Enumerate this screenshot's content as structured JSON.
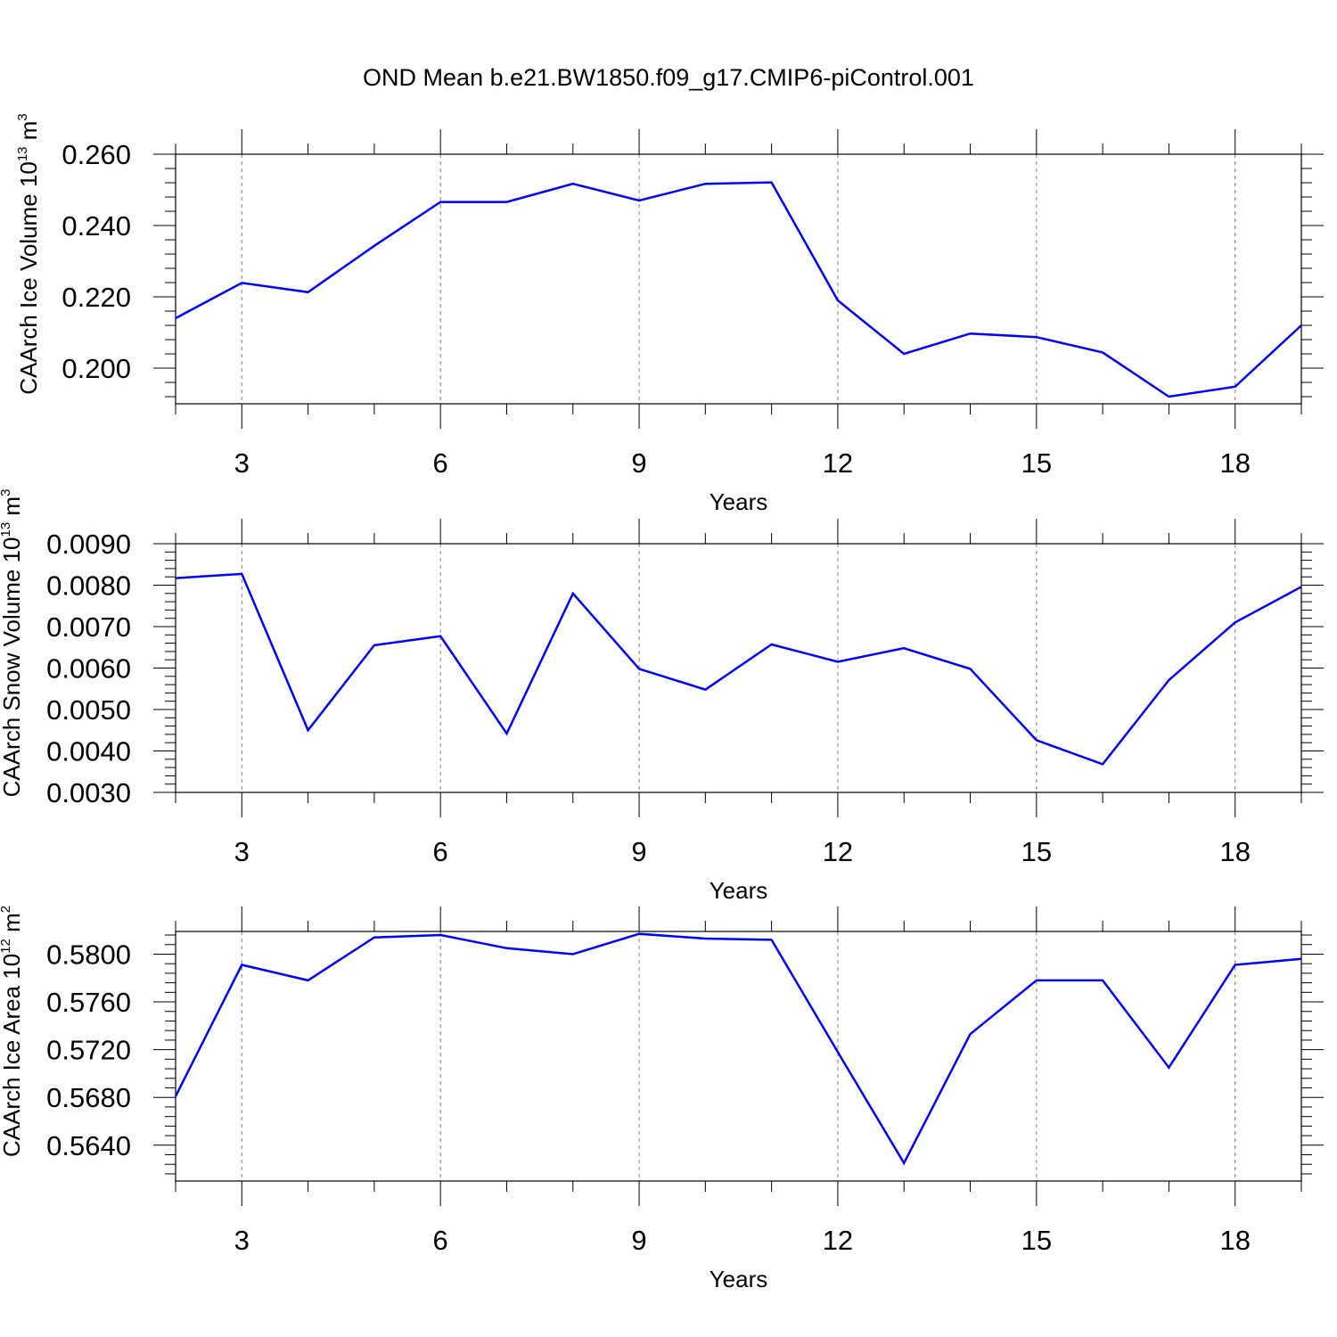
{
  "title": "OND Mean b.e21.BW1850.f09_g17.CMIP6-piControl.001",
  "colors": {
    "line": "#0000ff",
    "axis": "#000000",
    "grid": "#808080"
  },
  "chart_data": [
    {
      "type": "line",
      "xlabel": "Years",
      "ylabel": {
        "text": "CAArch Ice Volume 10",
        "exp": "13",
        "unit": " m",
        "unit_exp": "3"
      },
      "x": [
        2,
        3,
        4,
        5,
        6,
        7,
        8,
        9,
        10,
        11,
        12,
        13,
        14,
        15,
        16,
        17,
        18,
        19
      ],
      "series": [
        {
          "values": [
            0.214,
            0.2239,
            0.2213,
            0.2343,
            0.2466,
            0.2466,
            0.2517,
            0.247,
            0.2517,
            0.2521,
            0.219,
            0.204,
            0.2097,
            0.2087,
            0.2044,
            0.192,
            0.1948,
            0.212
          ]
        }
      ],
      "xlim": [
        2,
        19
      ],
      "ylim": [
        0.19,
        0.26
      ],
      "x_ticks": [
        3,
        6,
        9,
        12,
        15,
        18
      ],
      "x_tick_labels": [
        "3",
        "6",
        "9",
        "12",
        "15",
        "18"
      ],
      "y_ticks": [
        0.2,
        0.22,
        0.24,
        0.26
      ],
      "y_tick_labels": [
        "0.200",
        "0.220",
        "0.240",
        "0.260"
      ],
      "y_minor_step": 0.004,
      "grid": "vertical dashed at major x ticks"
    },
    {
      "type": "line",
      "xlabel": "Years",
      "ylabel": {
        "text": "CAArch Snow Volume 10",
        "exp": "13",
        "unit": " m",
        "unit_exp": "3"
      },
      "x": [
        2,
        3,
        4,
        5,
        6,
        7,
        8,
        9,
        10,
        11,
        12,
        13,
        14,
        15,
        16,
        17,
        18,
        19
      ],
      "series": [
        {
          "values": [
            0.00817,
            0.00827,
            0.0045,
            0.00655,
            0.00677,
            0.00442,
            0.0078,
            0.00598,
            0.00548,
            0.00657,
            0.00615,
            0.00648,
            0.00598,
            0.00426,
            0.00368,
            0.00571,
            0.0071,
            0.00796
          ]
        }
      ],
      "xlim": [
        2,
        19
      ],
      "ylim": [
        0.003,
        0.009
      ],
      "x_ticks": [
        3,
        6,
        9,
        12,
        15,
        18
      ],
      "x_tick_labels": [
        "3",
        "6",
        "9",
        "12",
        "15",
        "18"
      ],
      "y_ticks": [
        0.003,
        0.004,
        0.005,
        0.006,
        0.007,
        0.008,
        0.009
      ],
      "y_tick_labels": [
        "0.0030",
        "0.0040",
        "0.0050",
        "0.0060",
        "0.0070",
        "0.0080",
        "0.0090"
      ],
      "y_minor_step": 0.0002,
      "grid": "vertical dashed at major x ticks"
    },
    {
      "type": "line",
      "xlabel": "Years",
      "ylabel": {
        "text": "CAArch Ice Area 10",
        "exp": "12",
        "unit": " m",
        "unit_exp": "2"
      },
      "x": [
        2,
        3,
        4,
        5,
        6,
        7,
        8,
        9,
        10,
        11,
        12,
        13,
        14,
        15,
        16,
        17,
        18,
        19
      ],
      "series": [
        {
          "values": [
            0.5681,
            0.5791,
            0.5778,
            0.5814,
            0.5816,
            0.5805,
            0.58,
            0.5817,
            0.5813,
            0.5812,
            0.5718,
            0.5625,
            0.5733,
            0.5778,
            0.5778,
            0.5705,
            0.5791,
            0.5796
          ]
        }
      ],
      "xlim": [
        2,
        19
      ],
      "ylim": [
        0.561,
        0.5819
      ],
      "x_ticks": [
        3,
        6,
        9,
        12,
        15,
        18
      ],
      "x_tick_labels": [
        "3",
        "6",
        "9",
        "12",
        "15",
        "18"
      ],
      "y_ticks": [
        0.564,
        0.568,
        0.572,
        0.576,
        0.58
      ],
      "y_tick_labels": [
        "0.5640",
        "0.5680",
        "0.5720",
        "0.5760",
        "0.5800"
      ],
      "y_minor_step": 0.0008,
      "grid": "vertical dashed at major x ticks"
    }
  ]
}
